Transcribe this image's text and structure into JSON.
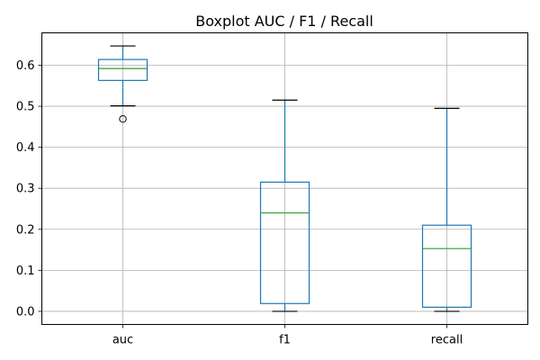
{
  "chart_data": {
    "type": "boxplot",
    "title": "Boxplot AUC / F1 / Recall",
    "xlabel": "",
    "ylabel": "",
    "categories": [
      "auc",
      "f1",
      "recall"
    ],
    "boxes": [
      {
        "name": "auc",
        "whislo": 0.501,
        "q1": 0.563,
        "med": 0.592,
        "q3": 0.614,
        "whishi": 0.647,
        "fliers": [
          0.469
        ]
      },
      {
        "name": "f1",
        "whislo": 0.0,
        "q1": 0.019,
        "med": 0.24,
        "q3": 0.315,
        "whishi": 0.515,
        "fliers": []
      },
      {
        "name": "recall",
        "whislo": 0.0,
        "q1": 0.01,
        "med": 0.153,
        "q3": 0.21,
        "whishi": 0.495,
        "fliers": []
      }
    ],
    "yticks": [
      0.0,
      0.1,
      0.2,
      0.3,
      0.4,
      0.5,
      0.6
    ],
    "ytick_labels": [
      "0.0",
      "0.1",
      "0.2",
      "0.3",
      "0.4",
      "0.5",
      "0.6"
    ],
    "ylim": [
      -0.032,
      0.679
    ],
    "grid": true,
    "colors": {
      "box": "#1f77b4",
      "median": "#2ca02c",
      "whisker_cap": "#000000",
      "grid": "#b0b0b0"
    }
  }
}
